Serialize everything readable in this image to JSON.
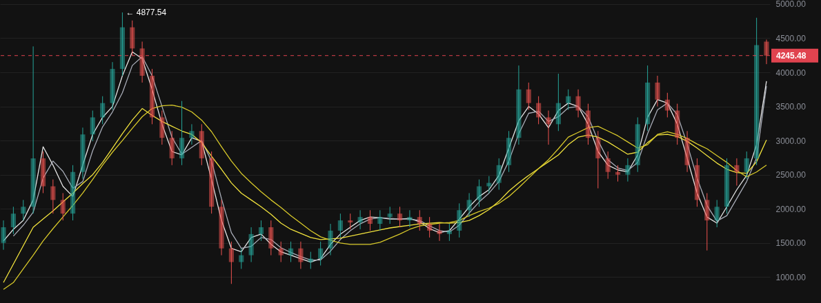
{
  "chart_data": {
    "type": "candlestick",
    "categories": [
      null,
      null,
      null,
      null,
      null,
      null,
      null,
      null,
      null,
      null,
      null,
      null,
      null,
      null,
      null,
      null,
      null,
      null,
      null,
      null,
      null,
      null,
      null,
      null,
      null,
      null,
      null,
      null,
      null,
      null,
      null,
      null,
      null,
      null,
      null,
      null,
      null,
      null,
      null,
      null,
      null,
      null,
      null,
      null,
      null,
      null,
      null,
      null,
      null,
      null,
      null,
      null,
      null,
      null,
      null,
      null,
      null,
      null,
      null,
      null,
      null,
      null,
      null,
      null,
      null,
      null,
      null,
      null,
      null,
      null,
      null,
      null,
      null,
      null,
      null,
      null,
      null,
      null
    ],
    "ohlc": [
      [
        1500,
        1830,
        1400,
        1730
      ],
      [
        1730,
        2030,
        1630,
        1930
      ],
      [
        1930,
        2130,
        1830,
        2030
      ],
      [
        2030,
        4380,
        1930,
        2740
      ],
      [
        2740,
        2840,
        2230,
        2330
      ],
      [
        2330,
        2430,
        1930,
        2130
      ],
      [
        2130,
        2230,
        1830,
        1930
      ],
      [
        1930,
        2640,
        1830,
        2540
      ],
      [
        2540,
        3190,
        2440,
        3090
      ],
      [
        3090,
        3440,
        2990,
        3340
      ],
      [
        3340,
        3650,
        3240,
        3550
      ],
      [
        3550,
        4150,
        3450,
        4050
      ],
      [
        4050,
        4877.54,
        3950,
        4660
      ],
      [
        4660,
        4760,
        4250,
        4350
      ],
      [
        4350,
        4450,
        3850,
        3950
      ],
      [
        3950,
        4050,
        3240,
        3340
      ],
      [
        3340,
        3440,
        2940,
        3040
      ],
      [
        3040,
        3140,
        2640,
        2740
      ],
      [
        2740,
        3580,
        2640,
        3040
      ],
      [
        3040,
        3240,
        2940,
        3140
      ],
      [
        3140,
        3240,
        2640,
        2740
      ],
      [
        2740,
        2840,
        1930,
        2030
      ],
      [
        2030,
        2130,
        1320,
        1420
      ],
      [
        1420,
        1520,
        900,
        1220
      ],
      [
        1220,
        1420,
        1120,
        1320
      ],
      [
        1320,
        1730,
        1220,
        1630
      ],
      [
        1630,
        1830,
        1530,
        1730
      ],
      [
        1730,
        1830,
        1320,
        1420
      ],
      [
        1420,
        1520,
        1220,
        1320
      ],
      [
        1320,
        1520,
        1220,
        1420
      ],
      [
        1420,
        1520,
        1120,
        1220
      ],
      [
        1220,
        1370,
        1120,
        1270
      ],
      [
        1270,
        1520,
        1170,
        1420
      ],
      [
        1420,
        1780,
        1320,
        1680
      ],
      [
        1680,
        1930,
        1580,
        1830
      ],
      [
        1830,
        1930,
        1700,
        1800
      ],
      [
        1800,
        1980,
        1700,
        1880
      ],
      [
        1880,
        1980,
        1680,
        1780
      ],
      [
        1780,
        1980,
        1680,
        1880
      ],
      [
        1880,
        2030,
        1780,
        1930
      ],
      [
        1930,
        2030,
        1730,
        1830
      ],
      [
        1830,
        1980,
        1730,
        1880
      ],
      [
        1880,
        1980,
        1680,
        1780
      ],
      [
        1780,
        1880,
        1580,
        1680
      ],
      [
        1680,
        1780,
        1530,
        1630
      ],
      [
        1630,
        1780,
        1530,
        1680
      ],
      [
        1680,
        2080,
        1580,
        1980
      ],
      [
        1980,
        2230,
        1880,
        2130
      ],
      [
        2130,
        2430,
        2030,
        2330
      ],
      [
        2330,
        2480,
        2230,
        2380
      ],
      [
        2380,
        2740,
        2280,
        2640
      ],
      [
        2640,
        3140,
        2540,
        3040
      ],
      [
        3040,
        4100,
        2940,
        3750
      ],
      [
        3750,
        3850,
        3450,
        3550
      ],
      [
        3550,
        3650,
        3240,
        3340
      ],
      [
        3340,
        3440,
        2940,
        3240
      ],
      [
        3240,
        3980,
        3140,
        3550
      ],
      [
        3550,
        3750,
        3450,
        3650
      ],
      [
        3650,
        3750,
        3340,
        3440
      ],
      [
        3440,
        3540,
        2940,
        3040
      ],
      [
        3040,
        3140,
        2300,
        2740
      ],
      [
        2740,
        2840,
        2440,
        2540
      ],
      [
        2540,
        2640,
        2400,
        2500
      ],
      [
        2500,
        2740,
        2400,
        2640
      ],
      [
        2640,
        3340,
        2540,
        3240
      ],
      [
        3240,
        4100,
        3140,
        3850
      ],
      [
        3850,
        3950,
        3500,
        3600
      ],
      [
        3600,
        3700,
        3340,
        3440
      ],
      [
        3440,
        3540,
        2940,
        3040
      ],
      [
        3040,
        3140,
        2540,
        2640
      ],
      [
        2640,
        2740,
        2030,
        2130
      ],
      [
        2130,
        2230,
        1390,
        1830
      ],
      [
        1830,
        2130,
        1730,
        2030
      ],
      [
        2030,
        2740,
        1930,
        2640
      ],
      [
        2640,
        2740,
        2340,
        2540
      ],
      [
        2540,
        2840,
        2440,
        2740
      ],
      [
        2740,
        4800,
        2640,
        4400
      ],
      [
        4450,
        4480,
        4120,
        4245.48
      ]
    ],
    "series": [
      {
        "type": "line",
        "color": "#e6e6e6",
        "values": [
          1530,
          1700,
          1830,
          2130,
          2910,
          2640,
          2330,
          2180,
          2640,
          3090,
          3340,
          3500,
          3950,
          4300,
          4200,
          3750,
          3240,
          2840,
          2790,
          3040,
          2990,
          2430,
          1830,
          1420,
          1370,
          1580,
          1630,
          1480,
          1370,
          1320,
          1270,
          1220,
          1270,
          1480,
          1630,
          1730,
          1830,
          1880,
          1870,
          1850,
          1850,
          1860,
          1810,
          1710,
          1650,
          1680,
          1850,
          2030,
          2180,
          2280,
          2490,
          2890,
          3290,
          3500,
          3390,
          3190,
          3440,
          3550,
          3500,
          3240,
          2840,
          2640,
          2570,
          2540,
          2790,
          3340,
          3600,
          3550,
          3240,
          2740,
          2230,
          1880,
          1790,
          2030,
          2280,
          2490,
          2940,
          3870
        ]
      },
      {
        "type": "line",
        "color": "#a9adb8",
        "values": [
          null,
          1600,
          1760,
          1950,
          2450,
          2700,
          2550,
          2300,
          2400,
          2850,
          3200,
          3420,
          3700,
          4100,
          4230,
          3950,
          3500,
          3050,
          2800,
          2900,
          3000,
          2700,
          2150,
          1650,
          1420,
          1450,
          1580,
          1550,
          1430,
          1360,
          1300,
          1250,
          1250,
          1380,
          1550,
          1680,
          1780,
          1850,
          1870,
          1860,
          1850,
          1850,
          1830,
          1750,
          1680,
          1660,
          1760,
          1940,
          2100,
          2230,
          2400,
          2700,
          3100,
          3400,
          3430,
          3280,
          3350,
          3480,
          3500,
          3350,
          3000,
          2720,
          2600,
          2560,
          2680,
          3100,
          3450,
          3550,
          3380,
          2950,
          2450,
          2050,
          1820,
          1900,
          2150,
          2400,
          2750,
          3800
        ]
      },
      {
        "type": "line",
        "color": "#f2e33d",
        "values": [
          920,
          1190,
          1460,
          1730,
          1850,
          1970,
          2100,
          2230,
          2370,
          2500,
          2680,
          2890,
          3100,
          3300,
          3470,
          3370,
          3280,
          3210,
          3140,
          3090,
          2970,
          2770,
          2580,
          2380,
          2230,
          2130,
          2030,
          1920,
          1790,
          1700,
          1640,
          1580,
          1550,
          1560,
          1570,
          1600,
          1630,
          1660,
          1690,
          1720,
          1740,
          1760,
          1780,
          1790,
          1800,
          1790,
          1800,
          1830,
          1900,
          1990,
          2110,
          2260,
          2380,
          2490,
          2590,
          2690,
          2790,
          2940,
          3050,
          3080,
          3050,
          2980,
          2890,
          2800,
          2830,
          2970,
          3080,
          3090,
          3060,
          2990,
          2890,
          2780,
          2670,
          2580,
          2530,
          2520,
          2690,
          3010
        ]
      },
      {
        "type": "line",
        "color": "#d8c92a",
        "values": [
          820,
          920,
          1120,
          1320,
          1530,
          1710,
          1880,
          2050,
          2230,
          2430,
          2640,
          2830,
          3000,
          3180,
          3350,
          3470,
          3510,
          3520,
          3490,
          3420,
          3300,
          3130,
          2910,
          2700,
          2520,
          2380,
          2250,
          2130,
          2020,
          1900,
          1790,
          1680,
          1590,
          1540,
          1500,
          1480,
          1480,
          1480,
          1510,
          1570,
          1630,
          1700,
          1750,
          1770,
          1790,
          1800,
          1830,
          1900,
          1960,
          2010,
          2080,
          2180,
          2310,
          2450,
          2590,
          2720,
          2880,
          3050,
          3120,
          3190,
          3210,
          3140,
          3070,
          2980,
          2890,
          2940,
          3090,
          3130,
          3090,
          3030,
          2950,
          2880,
          2780,
          2680,
          2560,
          2470,
          2540,
          2640
        ]
      }
    ],
    "ylim": [
      620,
      5060
    ],
    "yticks": [
      {
        "value": 1000,
        "label": "1000.00"
      },
      {
        "value": 1500,
        "label": "1500.00"
      },
      {
        "value": 2000,
        "label": "2000.00"
      },
      {
        "value": 2500,
        "label": "2500.00"
      },
      {
        "value": 3000,
        "label": "3000.00"
      },
      {
        "value": 3500,
        "label": "3500.00"
      },
      {
        "value": 4000,
        "label": "4000.00"
      },
      {
        "value": 4500,
        "label": "4500.00"
      },
      {
        "value": 5000,
        "label": "5000.00"
      }
    ],
    "tick_labels": "y",
    "grid": "y",
    "ref_lines": [
      {
        "axis": "y",
        "value": 4245.48,
        "label": "4245.48",
        "color": "#e0434f",
        "line_style": "dashed"
      }
    ],
    "annotations": [
      "← 4877.54"
    ]
  }
}
